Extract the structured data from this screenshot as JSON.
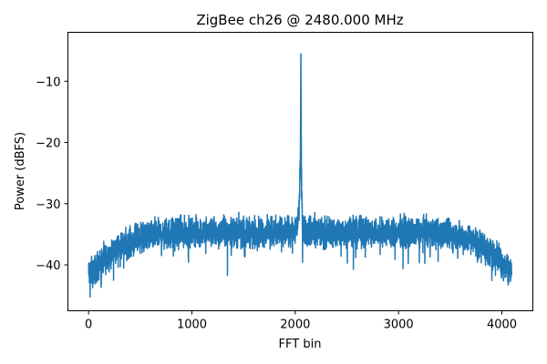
{
  "chart_data": {
    "type": "line",
    "title": "ZigBee ch26 @ 2480.000 MHz",
    "xlabel": "FFT bin",
    "ylabel": "Power (dBFS)",
    "xlim": [
      -200,
      4300
    ],
    "ylim": [
      -47.5,
      -2
    ],
    "xticks": [
      0,
      1000,
      2000,
      3000,
      4000
    ],
    "xtick_labels": [
      "0",
      "1000",
      "2000",
      "3000",
      "4000"
    ],
    "yticks": [
      -40,
      -30,
      -20,
      -10
    ],
    "ytick_labels": [
      "−40",
      "−30",
      "−20",
      "−10"
    ],
    "grid": false,
    "series": [
      {
        "color": "#1f77b4",
        "n_bins": 4096,
        "x": [
          0,
          50,
          100,
          150,
          200,
          250,
          300,
          400,
          500,
          600,
          700,
          800,
          1000,
          1200,
          1400,
          1600,
          1800,
          1950,
          2000,
          2020,
          2035,
          2040,
          2045,
          2050,
          2055,
          2060,
          2065,
          2070,
          2080,
          2100,
          2200,
          2400,
          2600,
          2800,
          3000,
          3200,
          3400,
          3600,
          3700,
          3800,
          3900,
          4000,
          4050,
          4095
        ],
        "y_mean": [
          -41.5,
          -41,
          -40,
          -39.3,
          -38.5,
          -37.8,
          -37.2,
          -36.3,
          -35.6,
          -35.2,
          -35,
          -34.8,
          -34.7,
          -34.7,
          -34.6,
          -34.7,
          -34.7,
          -34.6,
          -34.4,
          -33.5,
          -31.5,
          -30,
          -25,
          -24,
          -4.5,
          -26,
          -30,
          -33.5,
          -34.2,
          -34.5,
          -34.6,
          -34.7,
          -34.7,
          -34.7,
          -34.7,
          -34.7,
          -34.8,
          -35.3,
          -35.8,
          -36.8,
          -38,
          -39.6,
          -40.5,
          -41.2
        ],
        "noise_range": 3.5
      }
    ]
  }
}
